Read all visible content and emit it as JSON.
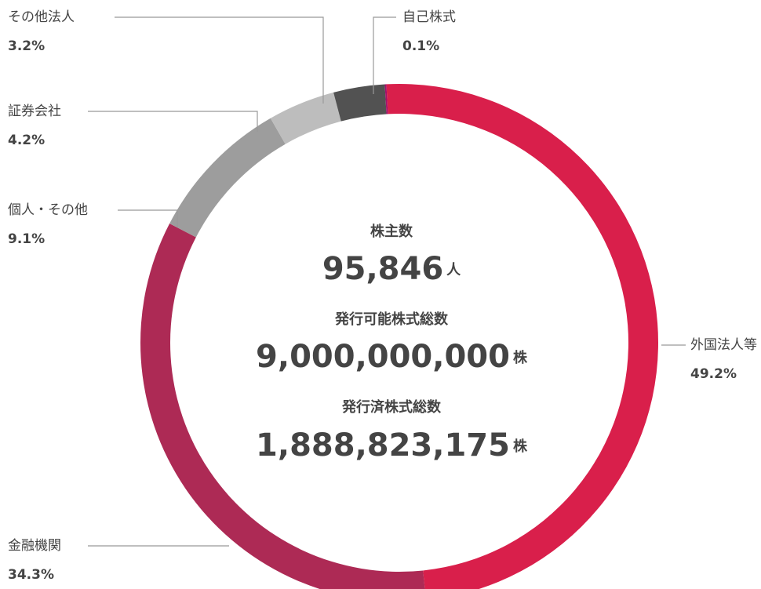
{
  "chart_data": {
    "type": "donut",
    "categories": [
      "外国法人等",
      "金融機関",
      "個人・その他",
      "証券会社",
      "その他法人",
      "自己株式"
    ],
    "values": [
      49.2,
      34.3,
      9.1,
      4.2,
      3.2,
      0.1
    ],
    "value_labels": [
      "49.2%",
      "34.3%",
      "9.1%",
      "4.2%",
      "3.2%",
      "0.1%"
    ],
    "colors": [
      "#d91f4b",
      "#ad2a55",
      "#9d9d9d",
      "#bdbdbd",
      "#525252",
      "#a2106b"
    ],
    "center": [
      {
        "title": "株主数",
        "value": {
          "value": 95846,
          "label": "95,846"
        },
        "unit": "人"
      },
      {
        "title": "発行可能株式総数",
        "value": {
          "value": 9000000000,
          "label": "9,000,000,000"
        },
        "unit": "株"
      },
      {
        "title": "発行済株式総数",
        "value": {
          "value": 1888823175,
          "label": "1,888,823,175"
        },
        "unit": "株"
      }
    ]
  }
}
